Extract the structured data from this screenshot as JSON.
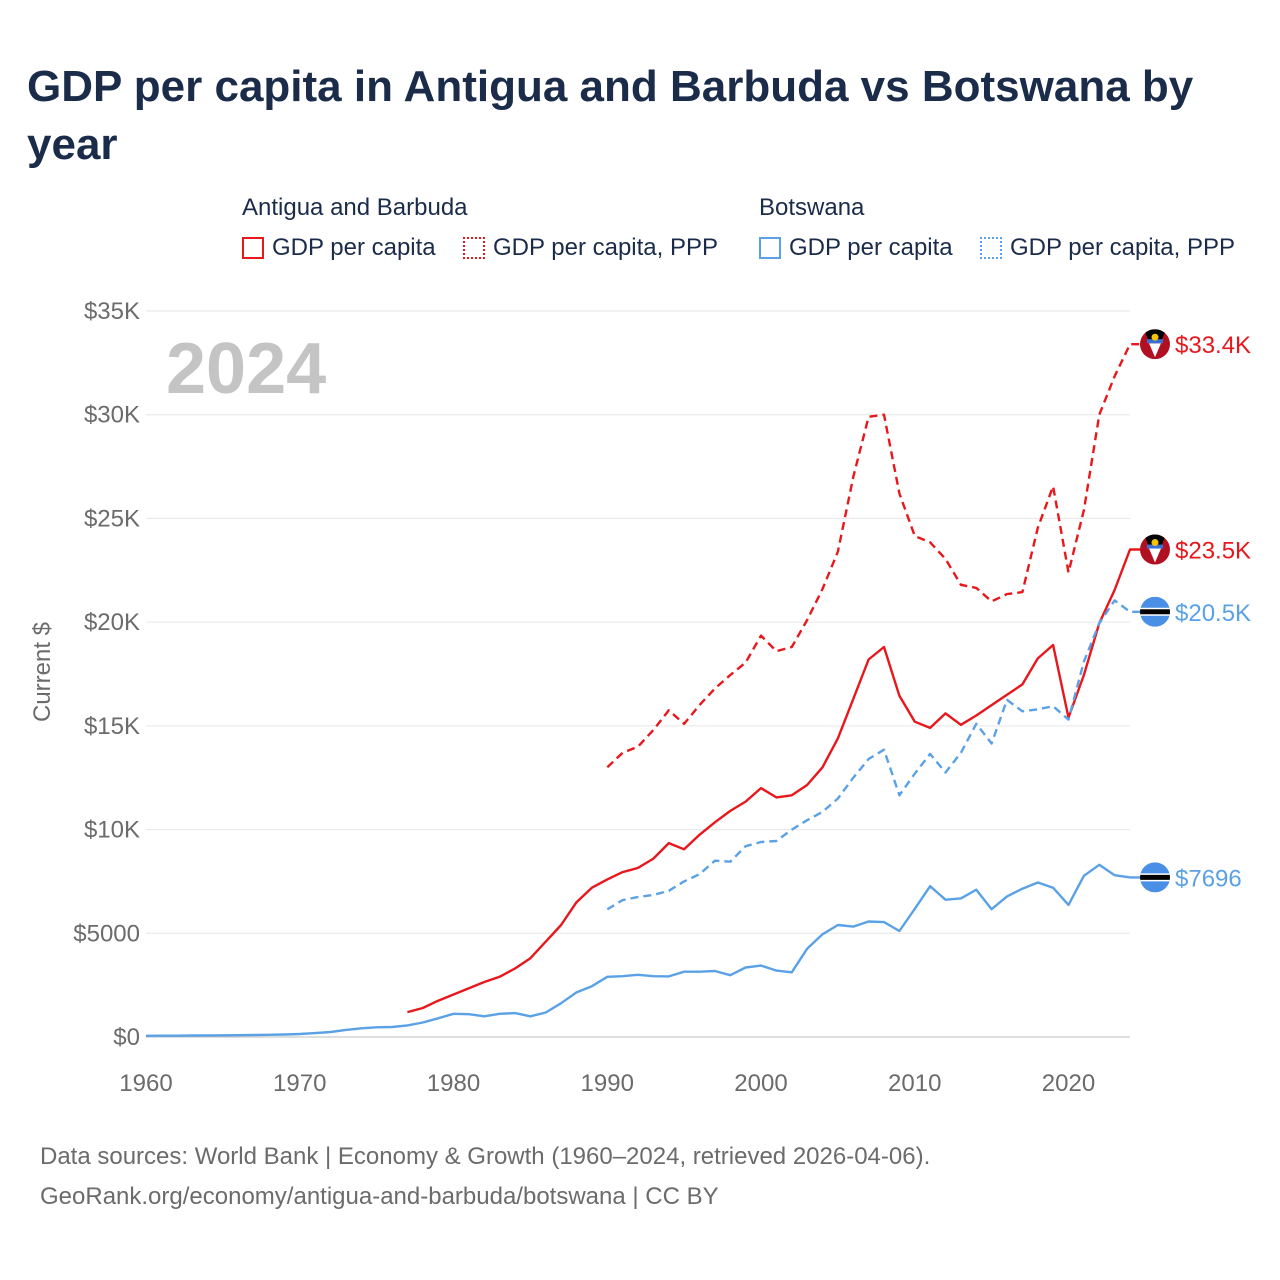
{
  "title": "GDP per capita in Antigua and Barbuda vs Botswana by year",
  "legend": {
    "groups": [
      {
        "label": "Antigua and Barbuda",
        "items": [
          "GDP per capita",
          "GDP per capita, PPP"
        ],
        "color": "#e8171c"
      },
      {
        "label": "Botswana",
        "items": [
          "GDP per capita",
          "GDP per capita, PPP"
        ],
        "color": "#5aa1e6"
      }
    ]
  },
  "year_label": "2024",
  "source": {
    "line1": "Data sources: World Bank | Economy & Growth (1960–2024, retrieved 2026-04-06).",
    "line2": "GeoRank.org/economy/antigua-and-barbuda/botswana | CC BY"
  },
  "chart_data": {
    "type": "line",
    "title": "GDP per capita in Antigua and Barbuda vs Botswana by year",
    "xlabel": "",
    "ylabel": "Current $",
    "xlim": [
      1960,
      2024
    ],
    "ylim": [
      0,
      35000
    ],
    "x_ticks": [
      1960,
      1970,
      1980,
      1990,
      2000,
      2010,
      2020
    ],
    "x_tick_labels": [
      "1960",
      "1970",
      "1980",
      "1990",
      "2000",
      "2010",
      "2020"
    ],
    "y_ticks": [
      0,
      5000,
      10000,
      15000,
      20000,
      25000,
      30000,
      35000
    ],
    "y_tick_labels": [
      "$0",
      "$5000",
      "$10K",
      "$15K",
      "$20K",
      "$25K",
      "$30K",
      "$35K"
    ],
    "grid": true,
    "series": [
      {
        "name": "Antigua and Barbuda — GDP per capita",
        "color": "#e8171c",
        "dash": "solid",
        "end_label": "$23.5K",
        "x": [
          1977,
          1978,
          1979,
          1980,
          1981,
          1982,
          1983,
          1984,
          1985,
          1986,
          1987,
          1988,
          1989,
          1990,
          1991,
          1992,
          1993,
          1994,
          1995,
          1996,
          1997,
          1998,
          1999,
          2000,
          2001,
          2002,
          2003,
          2004,
          2005,
          2006,
          2007,
          2008,
          2009,
          2010,
          2011,
          2012,
          2013,
          2014,
          2015,
          2016,
          2017,
          2018,
          2019,
          2020,
          2021,
          2022,
          2023,
          2024
        ],
        "values": [
          1200,
          1400,
          1750,
          2050,
          2350,
          2650,
          2900,
          3300,
          3800,
          4600,
          5400,
          6500,
          7200,
          7600,
          7950,
          8150,
          8600,
          9350,
          9050,
          9750,
          10350,
          10900,
          11350,
          12000,
          11550,
          11650,
          12150,
          13000,
          14400,
          16300,
          18200,
          18800,
          16450,
          15200,
          14900,
          15600,
          15050,
          15500,
          16000,
          16500,
          17000,
          18250,
          18900,
          15400,
          17450,
          19950,
          21550,
          23500
        ]
      },
      {
        "name": "Antigua and Barbuda — GDP per capita, PPP",
        "color": "#e8171c",
        "dash": "dashed",
        "end_label": "$33.4K",
        "x": [
          1990,
          1991,
          1992,
          1993,
          1994,
          1995,
          1996,
          1997,
          1998,
          1999,
          2000,
          2001,
          2002,
          2003,
          2004,
          2005,
          2006,
          2007,
          2008,
          2009,
          2010,
          2011,
          2012,
          2013,
          2014,
          2015,
          2016,
          2017,
          2018,
          2019,
          2020,
          2021,
          2022,
          2023,
          2024
        ],
        "values": [
          13000,
          13700,
          14000,
          14800,
          15750,
          15100,
          16000,
          16800,
          17450,
          18050,
          19350,
          18600,
          18800,
          20100,
          21600,
          23400,
          27000,
          29900,
          30000,
          26200,
          24150,
          23850,
          23050,
          21800,
          21650,
          21000,
          21350,
          21450,
          24550,
          26550,
          22400,
          25400,
          30000,
          31850,
          33400
        ]
      },
      {
        "name": "Botswana — GDP per capita",
        "color": "#5aa1e6",
        "dash": "solid",
        "end_label": "$7696",
        "x": [
          1960,
          1961,
          1962,
          1963,
          1964,
          1965,
          1966,
          1967,
          1968,
          1969,
          1970,
          1971,
          1972,
          1973,
          1974,
          1975,
          1976,
          1977,
          1978,
          1979,
          1980,
          1981,
          1982,
          1983,
          1984,
          1985,
          1986,
          1987,
          1988,
          1989,
          1990,
          1991,
          1992,
          1993,
          1994,
          1995,
          1996,
          1997,
          1998,
          1999,
          2000,
          2001,
          2002,
          2003,
          2004,
          2005,
          2006,
          2007,
          2008,
          2009,
          2010,
          2011,
          2012,
          2013,
          2014,
          2015,
          2016,
          2017,
          2018,
          2019,
          2020,
          2021,
          2022,
          2023,
          2024
        ],
        "values": [
          60,
          62,
          65,
          70,
          75,
          80,
          88,
          95,
          105,
          120,
          145,
          190,
          240,
          340,
          420,
          470,
          480,
          560,
          700,
          900,
          1120,
          1100,
          1000,
          1120,
          1150,
          1000,
          1180,
          1630,
          2150,
          2450,
          2900,
          2930,
          3000,
          2930,
          2920,
          3150,
          3150,
          3180,
          2980,
          3350,
          3440,
          3200,
          3120,
          4250,
          4950,
          5400,
          5320,
          5570,
          5540,
          5110,
          6180,
          7270,
          6620,
          6680,
          7100,
          6160,
          6780,
          7150,
          7450,
          7200,
          6370,
          7770,
          8300,
          7800,
          7696
        ]
      },
      {
        "name": "Botswana — GDP per capita, PPP",
        "color": "#5aa1e6",
        "dash": "dashed",
        "end_label": "$20.5K",
        "x": [
          1990,
          1991,
          1992,
          1993,
          1994,
          1995,
          1996,
          1997,
          1998,
          1999,
          2000,
          2001,
          2002,
          2003,
          2004,
          2005,
          2006,
          2007,
          2008,
          2009,
          2010,
          2011,
          2012,
          2013,
          2014,
          2015,
          2016,
          2017,
          2018,
          2019,
          2020,
          2021,
          2022,
          2023,
          2024
        ],
        "values": [
          6150,
          6600,
          6750,
          6850,
          7050,
          7500,
          7850,
          8500,
          8450,
          9200,
          9400,
          9450,
          10000,
          10450,
          10850,
          11500,
          12500,
          13400,
          13850,
          11650,
          12700,
          13650,
          12750,
          13700,
          15100,
          14150,
          16250,
          15700,
          15800,
          15950,
          15300,
          18100,
          19950,
          21050,
          20500
        ]
      }
    ]
  }
}
